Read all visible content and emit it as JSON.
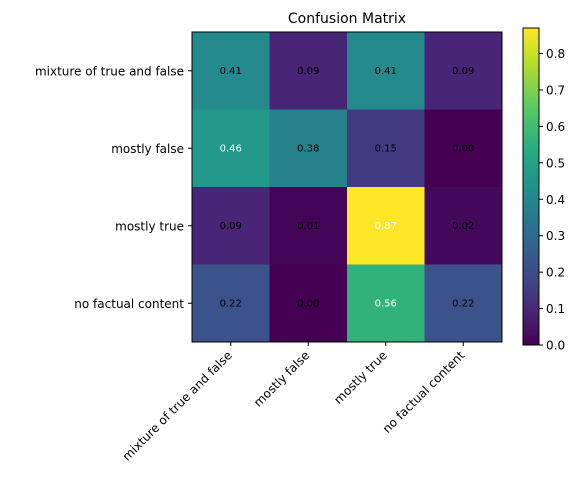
{
  "chart_data": {
    "type": "heatmap",
    "title": "Confusion Matrix",
    "xlabel": "",
    "ylabel": "",
    "rows": [
      "mixture of true and false",
      "mostly false",
      "mostly true",
      "no factual content"
    ],
    "cols": [
      "mixture of true and false",
      "mostly false",
      "mostly true",
      "no factual content"
    ],
    "values": [
      [
        0.41,
        0.09,
        0.41,
        0.09
      ],
      [
        0.46,
        0.38,
        0.15,
        0.0
      ],
      [
        0.09,
        0.01,
        0.87,
        0.02
      ],
      [
        0.22,
        0.0,
        0.56,
        0.22
      ]
    ],
    "value_labels": [
      [
        "0.41",
        "0.09",
        "0.41",
        "0.09"
      ],
      [
        "0.46",
        "0.38",
        "0.15",
        "0.00"
      ],
      [
        "0.09",
        "0.01",
        "0.87",
        "0.02"
      ],
      [
        "0.22",
        "0.00",
        "0.56",
        "0.22"
      ]
    ],
    "colormap": "viridis",
    "colorbar": {
      "range": [
        0,
        0.87
      ],
      "ticks": [
        0.0,
        0.1,
        0.2,
        0.3,
        0.4,
        0.5,
        0.6,
        0.7,
        0.8
      ],
      "tick_labels": [
        "0.0",
        "0.1",
        "0.2",
        "0.3",
        "0.4",
        "0.5",
        "0.6",
        "0.7",
        "0.8"
      ]
    },
    "text_color_dark": "#000000",
    "text_color_light": "#ffffff",
    "grid": false
  }
}
